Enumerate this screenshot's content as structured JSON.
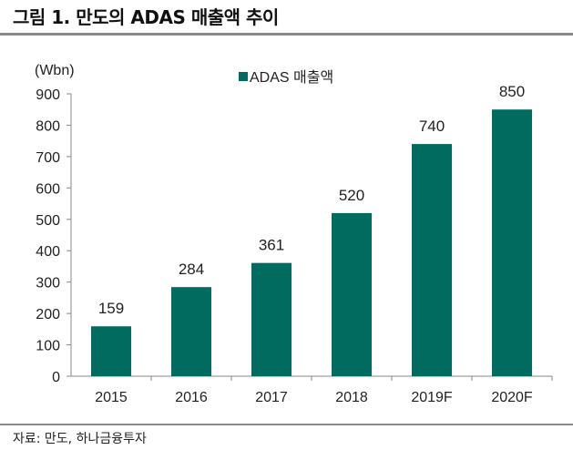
{
  "title": "그림 1. 만도의 ADAS 매출액 추이",
  "source": "자료: 만도, 하나금융투자",
  "chart_data": {
    "type": "bar",
    "categories": [
      "2015",
      "2016",
      "2017",
      "2018",
      "2019F",
      "2020F"
    ],
    "series": [
      {
        "name": "ADAS 매출액",
        "values": [
          159,
          284,
          361,
          520,
          740,
          850
        ]
      }
    ],
    "unit_label": "(Wbn)",
    "ylim": [
      0,
      900
    ],
    "yticks": [
      0,
      100,
      200,
      300,
      400,
      500,
      600,
      700,
      800,
      900
    ],
    "grid": false,
    "legend": "top-center",
    "color": "#006b5e"
  }
}
